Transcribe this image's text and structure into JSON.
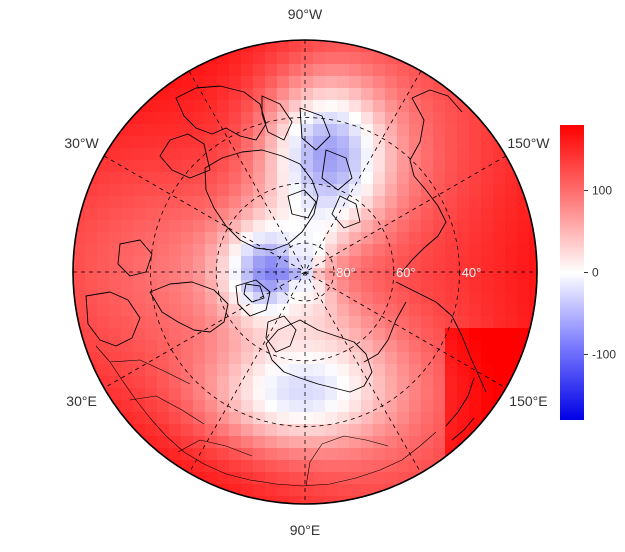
{
  "map": {
    "projection": "north-polar-stereographic",
    "lon_labels": [
      {
        "text": "90°W",
        "angle": -90
      },
      {
        "text": "150°W",
        "angle": -30
      },
      {
        "text": "150°E",
        "angle": 30
      },
      {
        "text": "90°E",
        "angle": 90
      },
      {
        "text": "30°E",
        "angle": 150
      },
      {
        "text": "30°W",
        "angle": 210
      }
    ],
    "lat_labels": [
      "80°",
      "60°",
      "40°"
    ],
    "lat_circles_deg": [
      80,
      60,
      40
    ],
    "boundary_lat_deg": 20,
    "meridians_deg": [
      0,
      30,
      60,
      90,
      120,
      150
    ]
  },
  "colorbar": {
    "ticks": [
      "100",
      "0",
      "-100"
    ],
    "tick_values": [
      100,
      0,
      -100
    ],
    "range": [
      -180,
      180
    ],
    "colors": {
      "low": "#0000e6",
      "mid": "#ffffff",
      "high": "#ff0000"
    }
  }
}
